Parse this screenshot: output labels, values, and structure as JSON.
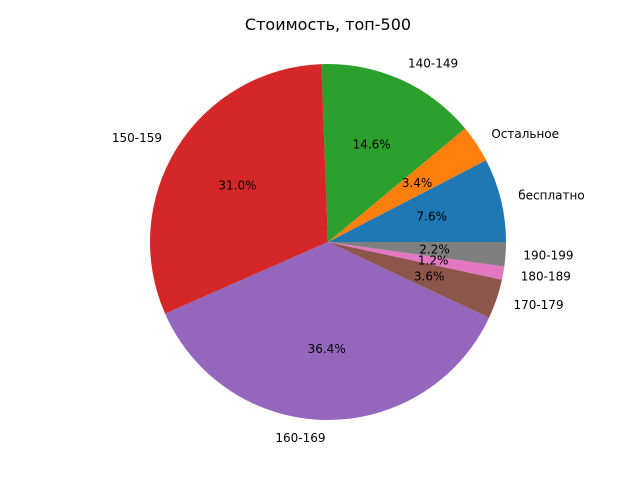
{
  "chart_data": {
    "type": "pie",
    "title": "Стоимость, топ-500",
    "categories": [
      "бесплатно",
      "Остальное",
      "140-149",
      "150-159",
      "160-169",
      "170-179",
      "180-189",
      "190-199"
    ],
    "values": [
      7.6,
      3.4,
      14.6,
      31.0,
      36.4,
      3.6,
      1.2,
      2.2
    ],
    "value_labels": [
      "7.6%",
      "3.4%",
      "14.6%",
      "31.0%",
      "36.4%",
      "3.6%",
      "1.2%",
      "2.2%"
    ],
    "colors": [
      "#1f77b4",
      "#ff7f0e",
      "#2ca02c",
      "#d62728",
      "#9467bd",
      "#8c564b",
      "#e377c2",
      "#7f7f7f"
    ],
    "legend": "none"
  }
}
